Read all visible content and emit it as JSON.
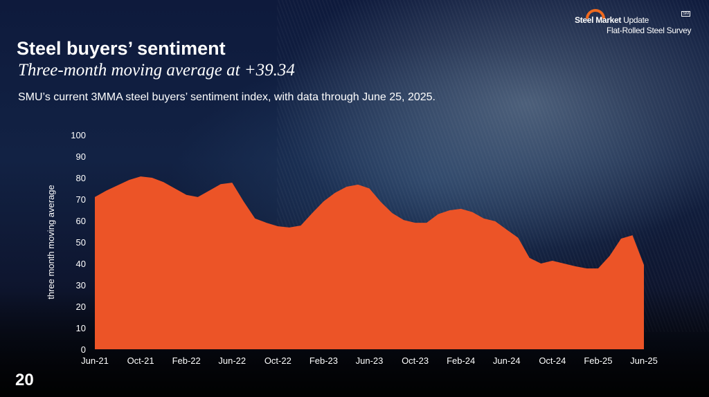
{
  "header": {
    "title": "Steel buyers’ sentiment",
    "subtitle": "Three-month moving average at +39.34",
    "description": "SMU’s current 3MMA steel buyers’ sentiment index, with data through June 25, 2025."
  },
  "logo": {
    "line1_bold": "Steel Market",
    "line1_light": " Update",
    "line2": "Flat-Rolled Steel Survey",
    "mark": "SM"
  },
  "page_number": "20",
  "colors": {
    "area": "#ec5427",
    "background": "#0e1a3c"
  },
  "chart_data": {
    "type": "area",
    "title": "",
    "xlabel": "",
    "ylabel": "three month moving average",
    "ylim": [
      0,
      100
    ],
    "yticks": [
      0,
      10,
      20,
      30,
      40,
      50,
      60,
      70,
      80,
      90,
      100
    ],
    "xtick_labels": [
      "Jun-21",
      "Oct-21",
      "Feb-22",
      "Jun-22",
      "Oct-22",
      "Feb-23",
      "Jun-23",
      "Oct-23",
      "Feb-24",
      "Jun-24",
      "Oct-24",
      "Feb-25",
      "Jun-25"
    ],
    "x": [
      "Jun-21",
      "Jul-21",
      "Aug-21",
      "Sep-21",
      "Oct-21",
      "Nov-21",
      "Dec-21",
      "Jan-22",
      "Feb-22",
      "Mar-22",
      "Apr-22",
      "May-22",
      "Jun-22",
      "Jul-22",
      "Aug-22",
      "Sep-22",
      "Oct-22",
      "Nov-22",
      "Dec-22",
      "Jan-23",
      "Feb-23",
      "Mar-23",
      "Apr-23",
      "May-23",
      "Jun-23",
      "Jul-23",
      "Aug-23",
      "Sep-23",
      "Oct-23",
      "Nov-23",
      "Dec-23",
      "Jan-24",
      "Feb-24",
      "Mar-24",
      "Apr-24",
      "May-24",
      "Jun-24",
      "Jul-24",
      "Aug-24",
      "Sep-24",
      "Oct-24",
      "Nov-24",
      "Dec-24",
      "Jan-25",
      "Feb-25",
      "Mar-25",
      "Apr-25",
      "May-25",
      "Jun-25"
    ],
    "values": [
      71,
      74,
      76.5,
      79,
      80.6,
      80,
      78,
      75,
      72,
      71,
      74,
      77,
      77.7,
      69,
      61,
      59,
      57.4,
      56.8,
      57.7,
      63.5,
      69,
      73,
      75.8,
      76.8,
      75,
      68.7,
      63.5,
      60.3,
      59,
      59,
      63,
      64.8,
      65.5,
      64,
      61,
      59.7,
      55.8,
      52,
      42.6,
      40,
      41.3,
      40,
      38.7,
      37.7,
      37.7,
      43.5,
      51.6,
      53.2,
      39.34
    ],
    "grid": false,
    "legend": "none"
  }
}
